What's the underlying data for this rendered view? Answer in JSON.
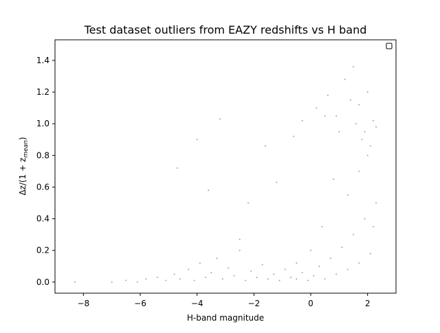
{
  "chart_data": {
    "type": "scatter",
    "title": "Test dataset outliers from EAZY redshifts vs H band",
    "xlabel": "H-band magnitude",
    "ylabel": {
      "prefix": "Δz/(1 + z",
      "subscript": "mean",
      "suffix": ")"
    },
    "xlim": [
      -9.0,
      3.0
    ],
    "ylim": [
      -0.07,
      1.53
    ],
    "xticks": [
      {
        "value": -8,
        "label": "−8"
      },
      {
        "value": -6,
        "label": "−6"
      },
      {
        "value": -4,
        "label": "−4"
      },
      {
        "value": -2,
        "label": "−2"
      },
      {
        "value": 0,
        "label": "0"
      },
      {
        "value": 2,
        "label": "2"
      }
    ],
    "yticks": [
      {
        "value": 0.0,
        "label": "0.0"
      },
      {
        "value": 0.2,
        "label": "0.2"
      },
      {
        "value": 0.4,
        "label": "0.4"
      },
      {
        "value": 0.6,
        "label": "0.6"
      },
      {
        "value": 0.8,
        "label": "0.8"
      },
      {
        "value": 1.0,
        "label": "1.0"
      },
      {
        "value": 1.2,
        "label": "1.2"
      },
      {
        "value": 1.4,
        "label": "1.4"
      }
    ],
    "grid": false,
    "legend": {
      "placement": "top-right",
      "entries": []
    },
    "marker_color": "#000000",
    "marker_alpha": 0.06,
    "series": [
      {
        "points": [
          [
            -8.3,
            0.0
          ],
          [
            -7.0,
            0.0
          ],
          [
            -6.5,
            0.01
          ],
          [
            -6.1,
            0.0
          ],
          [
            -5.8,
            0.02
          ],
          [
            -5.4,
            0.03
          ],
          [
            -5.1,
            0.01
          ],
          [
            -4.8,
            0.05
          ],
          [
            -4.6,
            0.02
          ],
          [
            -4.3,
            0.08
          ],
          [
            -4.1,
            0.01
          ],
          [
            -3.9,
            0.12
          ],
          [
            -3.7,
            0.03
          ],
          [
            -3.5,
            0.06
          ],
          [
            -3.3,
            0.15
          ],
          [
            -3.1,
            0.02
          ],
          [
            -2.9,
            0.09
          ],
          [
            -2.7,
            0.04
          ],
          [
            -2.5,
            0.2
          ],
          [
            -2.3,
            0.01
          ],
          [
            -2.1,
            0.07
          ],
          [
            -1.9,
            0.03
          ],
          [
            -1.7,
            0.11
          ],
          [
            -1.5,
            0.02
          ],
          [
            -1.3,
            0.05
          ],
          [
            -1.1,
            0.01
          ],
          [
            -0.9,
            0.08
          ],
          [
            -0.7,
            0.03
          ],
          [
            -0.5,
            0.02
          ],
          [
            -0.3,
            0.06
          ],
          [
            -0.1,
            0.01
          ],
          [
            0.1,
            0.04
          ],
          [
            0.3,
            0.1
          ],
          [
            0.5,
            0.02
          ],
          [
            0.7,
            0.15
          ],
          [
            0.9,
            0.05
          ],
          [
            1.1,
            0.22
          ],
          [
            1.3,
            0.08
          ],
          [
            1.5,
            0.3
          ],
          [
            1.7,
            0.12
          ],
          [
            1.9,
            0.4
          ],
          [
            2.1,
            0.18
          ],
          [
            2.3,
            0.5
          ],
          [
            -4.7,
            0.72
          ],
          [
            -4.0,
            0.9
          ],
          [
            -3.6,
            0.58
          ],
          [
            -3.2,
            1.03
          ],
          [
            -2.5,
            0.27
          ],
          [
            -2.2,
            0.5
          ],
          [
            -1.6,
            0.86
          ],
          [
            -1.2,
            0.63
          ],
          [
            -0.6,
            0.92
          ],
          [
            -0.3,
            1.02
          ],
          [
            0.2,
            1.1
          ],
          [
            0.6,
            1.18
          ],
          [
            0.9,
            1.05
          ],
          [
            1.2,
            1.28
          ],
          [
            1.5,
            1.36
          ],
          [
            1.7,
            1.12
          ],
          [
            1.9,
            0.95
          ],
          [
            2.1,
            0.86
          ],
          [
            2.3,
            0.98
          ],
          [
            1.6,
            1.0
          ],
          [
            1.8,
            0.9
          ],
          [
            2.0,
            0.8
          ],
          [
            2.2,
            1.02
          ],
          [
            1.4,
            1.15
          ],
          [
            1.0,
            0.95
          ],
          [
            0.5,
            1.05
          ],
          [
            0.8,
            0.65
          ],
          [
            1.3,
            0.55
          ],
          [
            2.2,
            0.35
          ],
          [
            0.4,
            0.35
          ],
          [
            0.0,
            0.2
          ],
          [
            -0.5,
            0.12
          ],
          [
            1.7,
            0.7
          ],
          [
            2.0,
            1.2
          ]
        ]
      }
    ]
  }
}
